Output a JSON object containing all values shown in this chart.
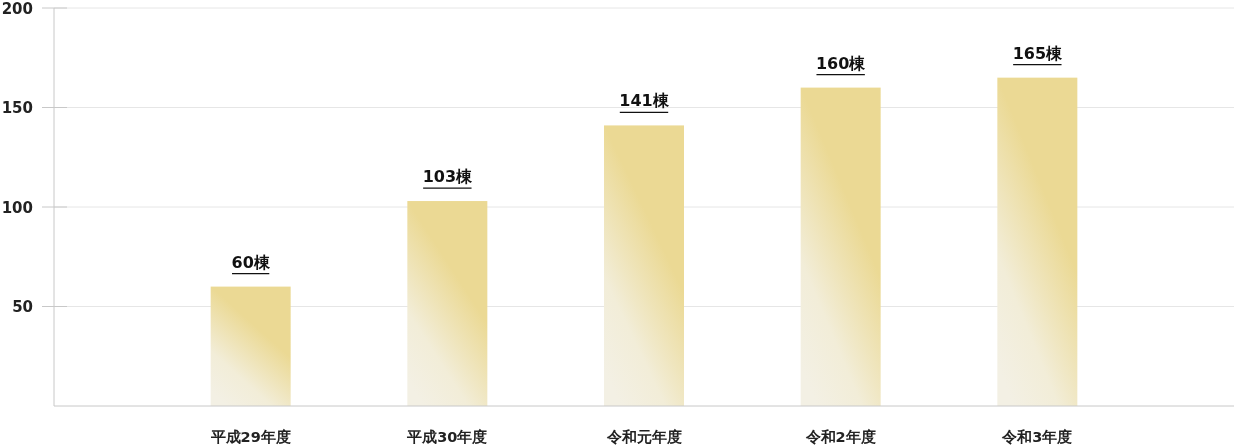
{
  "chart_data": {
    "type": "bar",
    "categories": [
      "平成29年度",
      "平成30年度",
      "令和元年度",
      "令和2年度",
      "令和3年度"
    ],
    "values": [
      60,
      103,
      141,
      160,
      165
    ],
    "value_labels": [
      "60棟",
      "103棟",
      "141棟",
      "160棟",
      "165棟"
    ],
    "color": "#ebd994",
    "ylim": [
      0,
      200
    ],
    "yticks": [
      50,
      100,
      150,
      200
    ],
    "grid": "y"
  }
}
